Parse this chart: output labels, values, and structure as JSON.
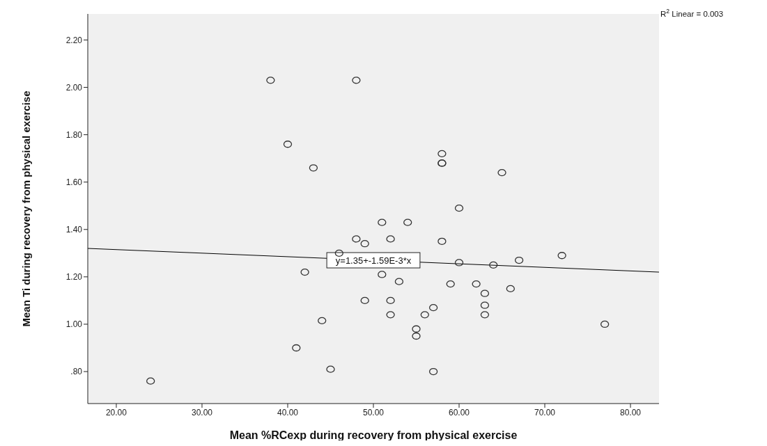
{
  "chart_data": {
    "type": "scatter",
    "xlabel": "Mean %RCexp during recovery from physical exercise",
    "ylabel": "Mean Ti  during recovery from physical exercise",
    "xlim": [
      16.67,
      83.33
    ],
    "ylim": [
      0.665,
      2.31
    ],
    "xticks": [
      {
        "value": 20,
        "label": "20.00"
      },
      {
        "value": 30,
        "label": "30.00"
      },
      {
        "value": 40,
        "label": "40.00"
      },
      {
        "value": 50,
        "label": "50.00"
      },
      {
        "value": 60,
        "label": "60.00"
      },
      {
        "value": 70,
        "label": "70.00"
      },
      {
        "value": 80,
        "label": "80.00"
      }
    ],
    "yticks": [
      {
        "value": 0.8,
        "label": ".80"
      },
      {
        "value": 1.0,
        "label": "1.00"
      },
      {
        "value": 1.2,
        "label": "1.20"
      },
      {
        "value": 1.4,
        "label": "1.40"
      },
      {
        "value": 1.6,
        "label": "1.60"
      },
      {
        "value": 1.8,
        "label": "1.80"
      },
      {
        "value": 2.0,
        "label": "2.00"
      },
      {
        "value": 2.2,
        "label": "2.20"
      }
    ],
    "grid": false,
    "legend": false,
    "series": [
      {
        "marker": "circle",
        "color": "#333333",
        "x": [
          24,
          38,
          48,
          40,
          43,
          58,
          58,
          58,
          65,
          60,
          51,
          54,
          48,
          52,
          49,
          58,
          46,
          60,
          64,
          67,
          72,
          42,
          51,
          53,
          59,
          62,
          66,
          63,
          49,
          52,
          63,
          57,
          56,
          52,
          63,
          44,
          77,
          55,
          55,
          41,
          45,
          57
        ],
        "values": [
          0.76,
          2.03,
          2.03,
          1.76,
          1.66,
          1.72,
          1.68,
          1.68,
          1.64,
          1.49,
          1.43,
          1.43,
          1.36,
          1.36,
          1.34,
          1.35,
          1.3,
          1.26,
          1.25,
          1.27,
          1.29,
          1.22,
          1.21,
          1.18,
          1.17,
          1.17,
          1.15,
          1.13,
          1.1,
          1.1,
          1.08,
          1.07,
          1.04,
          1.04,
          1.04,
          1.015,
          1.0,
          0.98,
          0.95,
          0.9,
          0.81,
          0.8
        ]
      },
      {
        "type": "line",
        "color": "#000000",
        "x": [
          16.67,
          83.33
        ],
        "values": [
          1.32,
          1.22
        ]
      }
    ],
    "annotations": [
      "R$^{2}$ Linear = 0.003",
      {
        "text": "y=1.35+-1.59E-3*x",
        "x": 50,
        "y": 1.27
      }
    ]
  }
}
